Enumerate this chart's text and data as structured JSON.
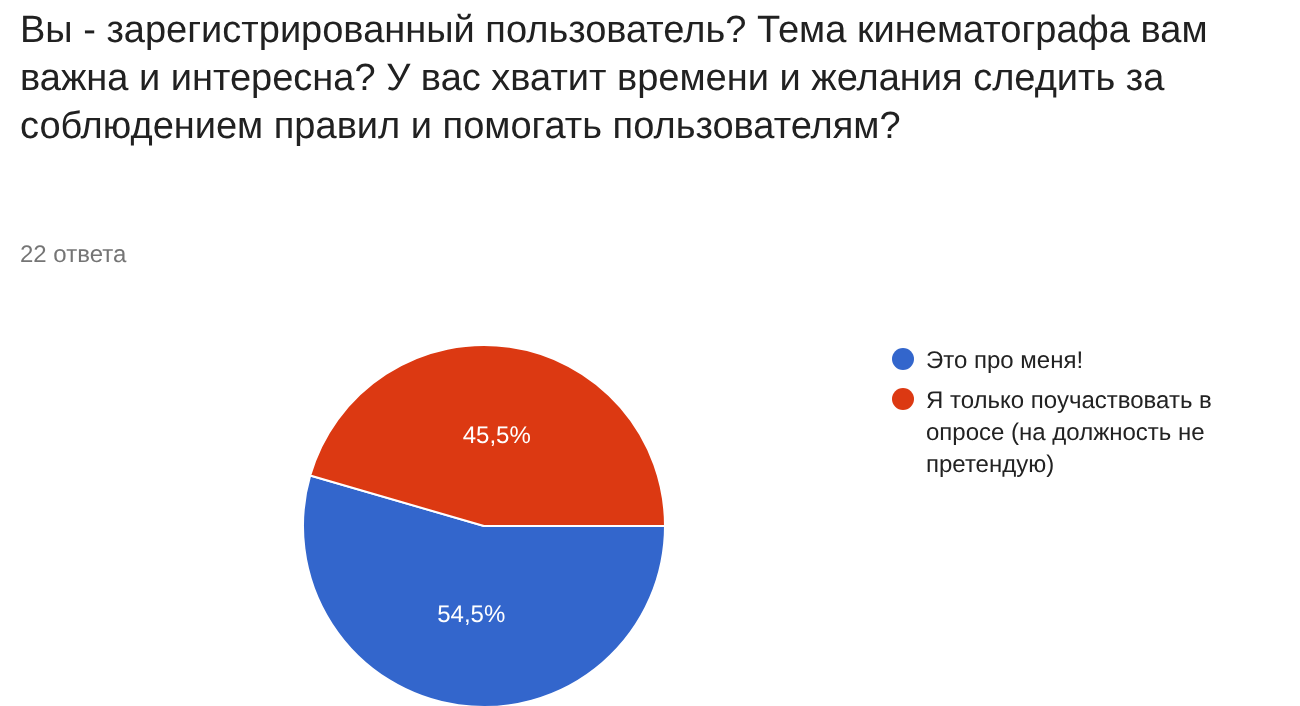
{
  "chart_data": {
    "type": "pie",
    "title": "Вы - зарегистрированный пользователь? Тема кинематографа вам важна и интересна? У вас хватит времени и желания следить за соблюдением правил и помогать пользователям?",
    "subtitle": "22 ответа",
    "categories": [
      "Это про меня!",
      "Я только поучаствовать в опросе (на должность не претендую)"
    ],
    "values": [
      54.5,
      45.5
    ],
    "value_labels": [
      "54,5%",
      "45,5%"
    ],
    "colors": [
      "#3366cc",
      "#dc3912"
    ],
    "legend": "right"
  }
}
